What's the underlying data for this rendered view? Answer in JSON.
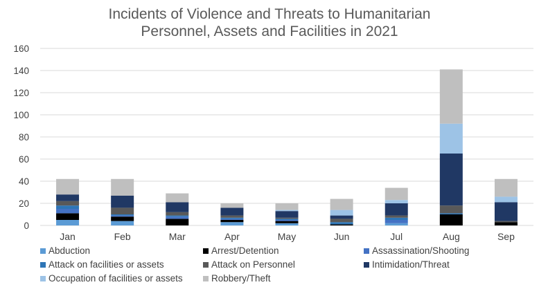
{
  "chart_data": {
    "type": "bar",
    "stacked": true,
    "title": "Incidents of Violence and Threats to Humanitarian\nPersonnel, Assets and Facilities in 2021",
    "xlabel": "",
    "ylabel": "",
    "ylim": [
      0,
      160
    ],
    "yticks": [
      0,
      20,
      40,
      60,
      80,
      100,
      120,
      140,
      160
    ],
    "grid": true,
    "legend": "bottom",
    "categories": [
      "Jan",
      "Feb",
      "Mar",
      "Apr",
      "May",
      "Jun",
      "Jul",
      "Aug",
      "Sep"
    ],
    "series": [
      {
        "name": "Abduction",
        "color": "#5b9bd5",
        "values": [
          5,
          4,
          0,
          3,
          2,
          0,
          2,
          0,
          0
        ]
      },
      {
        "name": "Arrest/Detention",
        "color": "#000000",
        "values": [
          6,
          4,
          6,
          2,
          2,
          1,
          0,
          10,
          3
        ]
      },
      {
        "name": "Assassination/Shooting",
        "color": "#4472c4",
        "values": [
          4,
          1,
          2,
          1,
          1,
          0,
          3,
          0,
          0
        ]
      },
      {
        "name": "Attack on facilities or assets",
        "color": "#2e75b6",
        "values": [
          3,
          1,
          1,
          1,
          1,
          2,
          2,
          1,
          0
        ]
      },
      {
        "name": "Attack on Personnel",
        "color": "#595959",
        "values": [
          4,
          6,
          3,
          2,
          1,
          3,
          2,
          7,
          1
        ]
      },
      {
        "name": "Intimidation/Threat",
        "color": "#203864",
        "values": [
          6,
          11,
          9,
          7,
          6,
          3,
          11,
          47,
          17
        ]
      },
      {
        "name": "Occupation of facilities or assets",
        "color": "#9dc3e6",
        "values": [
          0,
          0,
          0,
          0,
          1,
          5,
          3,
          27,
          5
        ]
      },
      {
        "name": "Robbery/Theft",
        "color": "#bfbfbf",
        "values": [
          14,
          15,
          8,
          4,
          6,
          10,
          11,
          49,
          16
        ]
      }
    ]
  }
}
